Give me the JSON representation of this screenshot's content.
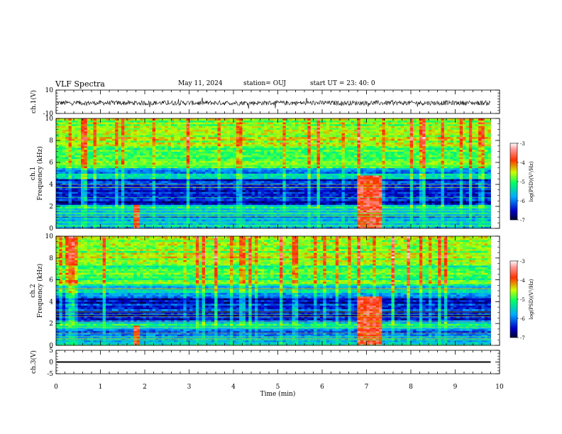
{
  "header": {
    "title": "VLF Spectra",
    "date": "May 11, 2024",
    "station": "station= OUJ",
    "start": "start  UT  =   23: 40: 0"
  },
  "chart_data": [
    {
      "type": "line",
      "panel": "ch1-waveform",
      "ylabel": "ch.1(V)",
      "ylim": [
        -10,
        10
      ],
      "yticks": [
        "10",
        "-10"
      ],
      "xlim": [
        0,
        10
      ],
      "series": [
        {
          "baseline": -1,
          "noise_amplitude": 2,
          "x_end": 9.8
        }
      ]
    },
    {
      "type": "heatmap",
      "panel": "ch1-spectrogram",
      "ylabel_top": "ch.1",
      "ylabel": "Frequency (kHz)",
      "ylim": [
        0,
        10
      ],
      "yticks": [
        "0",
        "2",
        "4",
        "6",
        "8",
        "10"
      ],
      "xlim": [
        0,
        10
      ],
      "x_end": 9.8,
      "colorbar": {
        "label": "log(PSD)(V²/Hz)",
        "range": [
          -7,
          -3
        ],
        "ticks": [
          "-3",
          "-4",
          "-5",
          "-6",
          "-7"
        ]
      },
      "bursts": [
        {
          "x0": 1.75,
          "x1": 1.9,
          "fmax": 2.2
        },
        {
          "x0": 6.8,
          "x1": 7.35,
          "fmax": 4.8
        }
      ]
    },
    {
      "type": "heatmap",
      "panel": "ch2-spectrogram",
      "ylabel_top": "ch.2",
      "ylabel": "Frequency (kHz)",
      "ylim": [
        0,
        10
      ],
      "yticks": [
        "0",
        "2",
        "4",
        "6",
        "8",
        "10"
      ],
      "xlim": [
        0,
        10
      ],
      "x_end": 9.8,
      "colorbar": {
        "label": "log(PSD)(V²/Hz)",
        "range": [
          -7,
          -3
        ],
        "ticks": [
          "-3",
          "-4",
          "-5",
          "-6",
          "-7"
        ]
      },
      "bursts": [
        {
          "x0": 1.75,
          "x1": 1.9,
          "fmax": 1.8
        },
        {
          "x0": 6.8,
          "x1": 7.35,
          "fmax": 4.5
        }
      ]
    },
    {
      "type": "line",
      "panel": "ch3-waveform",
      "ylabel": "ch.3(V)",
      "ylim": [
        -5,
        5
      ],
      "yticks": [
        "5",
        "0",
        "-5"
      ],
      "xlim": [
        0,
        10
      ],
      "xlabel": "Time  (min)",
      "xticks": [
        "0",
        "1",
        "2",
        "3",
        "4",
        "5",
        "6",
        "7",
        "8",
        "9",
        "10"
      ],
      "series": [
        {
          "value": 0.0,
          "x_end": 9.8
        }
      ]
    }
  ]
}
